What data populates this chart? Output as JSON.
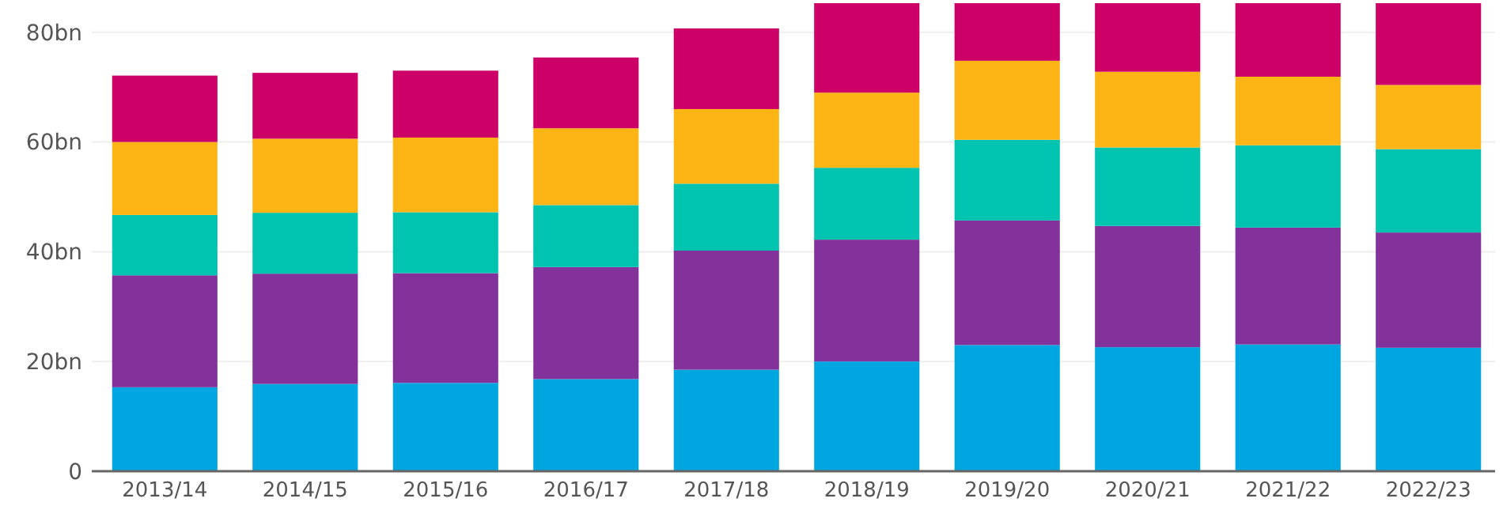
{
  "chart_data": {
    "type": "bar",
    "stacked": true,
    "categories": [
      "2013/14",
      "2014/15",
      "2015/16",
      "2016/17",
      "2017/18",
      "2018/19",
      "2019/20",
      "2020/21",
      "2021/22",
      "2022/23"
    ],
    "series": [
      {
        "color": "#00a6e0",
        "values": [
          15.3,
          15.9,
          16.1,
          16.8,
          18.5,
          20.0,
          23.0,
          22.6,
          23.1,
          22.5
        ]
      },
      {
        "color": "#84329b",
        "values": [
          20.4,
          20.1,
          20.0,
          20.4,
          21.7,
          22.2,
          22.7,
          22.1,
          21.3,
          21.0
        ]
      },
      {
        "color": "#00c4b0",
        "values": [
          11.0,
          11.1,
          11.1,
          11.3,
          12.2,
          13.1,
          14.7,
          14.3,
          15.0,
          15.2
        ]
      },
      {
        "color": "#fdb515",
        "values": [
          13.3,
          13.5,
          13.6,
          14.0,
          13.6,
          13.7,
          14.4,
          13.8,
          12.5,
          11.7
        ]
      },
      {
        "color": "#cc0066",
        "values": [
          12.1,
          12.0,
          12.2,
          12.9,
          14.7,
          16.3,
          10.5,
          12.5,
          13.4,
          14.9
        ]
      }
    ],
    "ylim": [
      0,
      85.3
    ],
    "yticks": [
      0,
      {
        "value": 20,
        "label": "20bn"
      },
      {
        "value": 40,
        "label": "40bn"
      },
      {
        "value": 60,
        "label": "60bn"
      },
      {
        "value": 80,
        "label": "80bn"
      }
    ],
    "grid": "y"
  }
}
